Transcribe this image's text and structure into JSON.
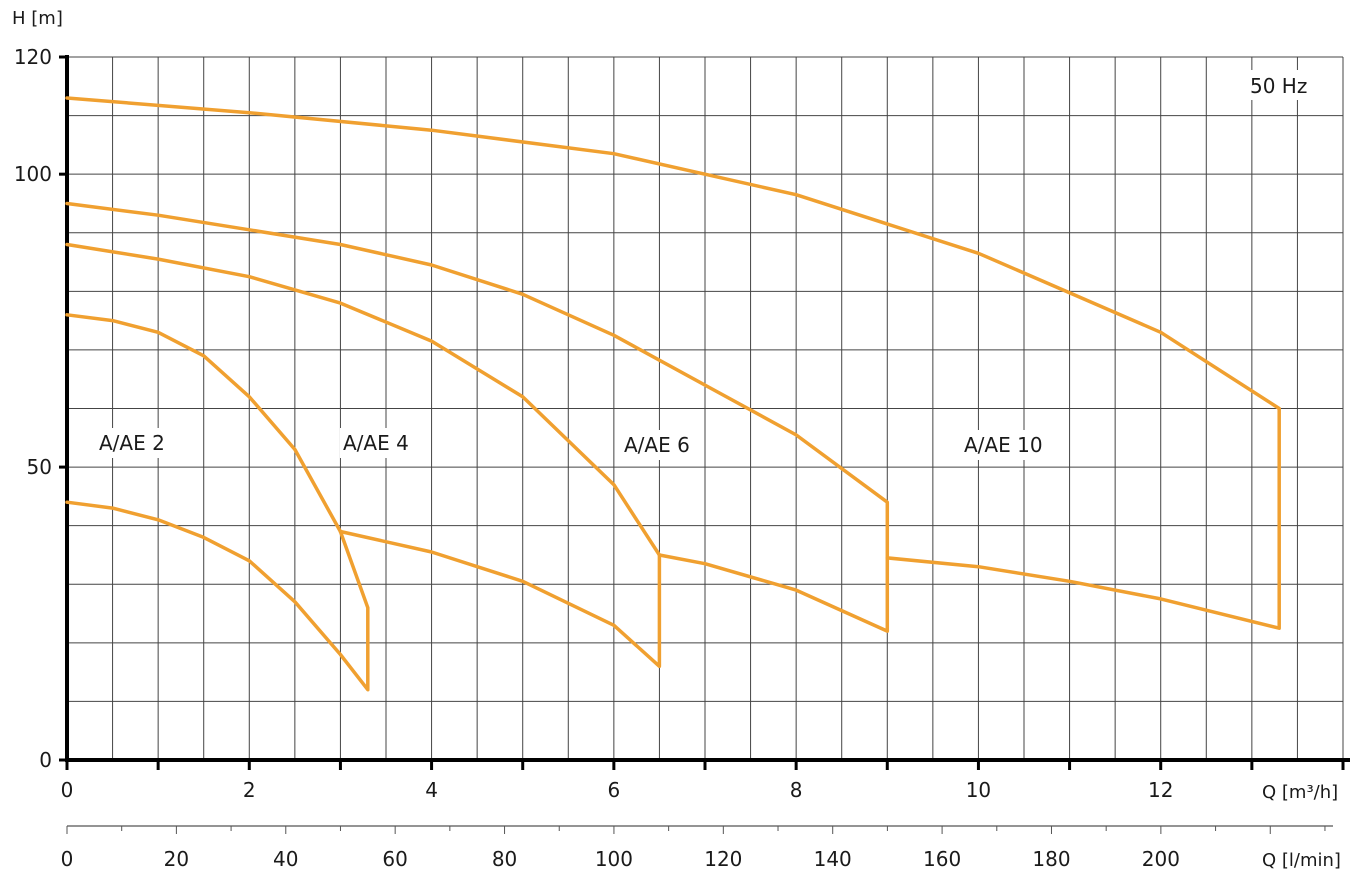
{
  "chart_data": {
    "type": "line",
    "frequency_label": "50 Hz",
    "y_axis": {
      "label": "H [m]",
      "range": [
        0,
        120
      ],
      "ticks": [
        0,
        50,
        100,
        120
      ],
      "grid_step": 10
    },
    "x_axis": {
      "label": "Q [m³/h]",
      "range": [
        0,
        14
      ],
      "ticks": [
        0,
        2,
        4,
        6,
        8,
        10,
        12
      ],
      "grid_step": 0.5
    },
    "x_axis_secondary": {
      "label": "Q [l/min]",
      "range": [
        0,
        233.3
      ],
      "ticks": [
        0,
        20,
        40,
        60,
        80,
        100,
        120,
        140,
        160,
        180,
        200
      ],
      "minor_step": 10
    },
    "curve_color": "#f0a030",
    "grid": true,
    "series": [
      {
        "name": "A/AE 2",
        "upper": [
          [
            0,
            76
          ],
          [
            0.5,
            75
          ],
          [
            1,
            73
          ],
          [
            1.5,
            69
          ],
          [
            2,
            62
          ],
          [
            2.5,
            53
          ],
          [
            3,
            39
          ],
          [
            3.3,
            26
          ]
        ],
        "lower": [
          [
            0,
            44
          ],
          [
            0.5,
            43
          ],
          [
            1,
            41
          ],
          [
            1.5,
            38
          ],
          [
            2,
            34
          ],
          [
            2.5,
            27
          ],
          [
            3,
            18
          ],
          [
            3.3,
            12
          ]
        ]
      },
      {
        "name": "A/AE 4",
        "upper": [
          [
            0,
            88
          ],
          [
            1,
            85.5
          ],
          [
            2,
            82.5
          ],
          [
            3,
            78
          ],
          [
            4,
            71.5
          ],
          [
            5,
            62
          ],
          [
            6,
            47
          ],
          [
            6.5,
            35
          ]
        ],
        "lower": [
          [
            3,
            39
          ],
          [
            4,
            35.5
          ],
          [
            5,
            30.5
          ],
          [
            6,
            23
          ],
          [
            6.5,
            16
          ]
        ]
      },
      {
        "name": "A/AE 6",
        "upper": [
          [
            0,
            95
          ],
          [
            1,
            93
          ],
          [
            2,
            90.5
          ],
          [
            3,
            88
          ],
          [
            4,
            84.5
          ],
          [
            5,
            79.5
          ],
          [
            6,
            72.5
          ],
          [
            7,
            64
          ],
          [
            8,
            55.5
          ],
          [
            9,
            44
          ]
        ],
        "lower": [
          [
            6.5,
            35
          ],
          [
            7,
            33.5
          ],
          [
            8,
            29
          ],
          [
            9,
            22
          ]
        ]
      },
      {
        "name": "A/AE 10",
        "upper": [
          [
            0,
            113
          ],
          [
            2,
            110.5
          ],
          [
            4,
            107.5
          ],
          [
            6,
            103.5
          ],
          [
            8,
            96.5
          ],
          [
            10,
            86.5
          ],
          [
            12,
            73
          ],
          [
            13.3,
            60
          ]
        ],
        "lower": [
          [
            9,
            34.5
          ],
          [
            10,
            33
          ],
          [
            11,
            30.5
          ],
          [
            12,
            27.5
          ],
          [
            13.3,
            22.5
          ]
        ]
      }
    ]
  }
}
